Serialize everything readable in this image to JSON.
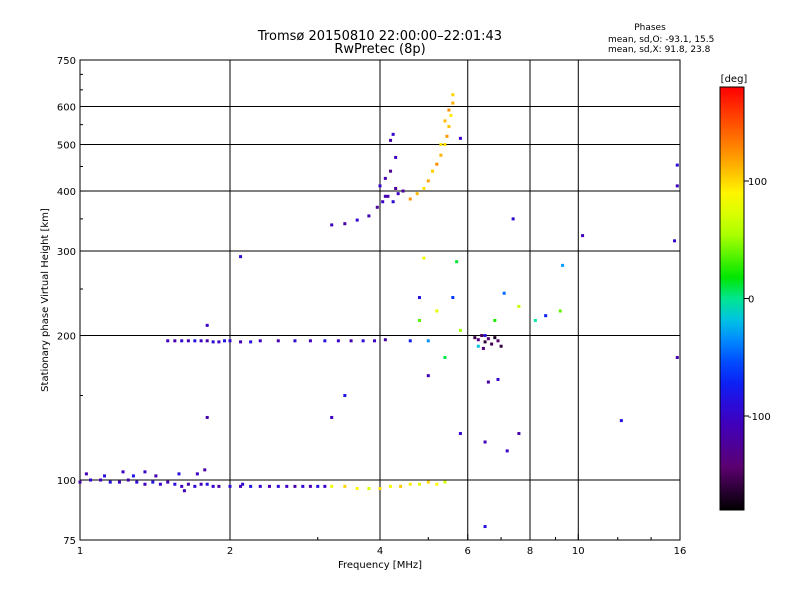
{
  "chart_data": {
    "type": "scatter",
    "title_line1": "Tromsø 20150810 22:00:00–22:01:43",
    "title_line2": "RwPretec (8p)",
    "phases": {
      "heading": "Phases",
      "line_o": "mean, sd,O: -93.1, 15.5",
      "line_x": "mean, sd,X:  91.8, 23.8"
    },
    "xlabel": "Frequency [MHz]",
    "ylabel": "Stationary phase Virtual Height [km]",
    "x_scale": "log",
    "y_scale": "log",
    "xlim": [
      1,
      16
    ],
    "ylim": [
      75,
      750
    ],
    "x_ticks": [
      1,
      2,
      4,
      6,
      8,
      10,
      16
    ],
    "x_tick_labels": [
      "1",
      "2",
      "4",
      "6",
      "8",
      "10",
      "16"
    ],
    "x_gridlines": [
      2,
      4,
      6,
      8,
      10
    ],
    "y_ticks": [
      75,
      100,
      200,
      300,
      400,
      500,
      600,
      750
    ],
    "y_tick_labels": [
      "75",
      "100",
      "200",
      "300",
      "400",
      "500",
      "600",
      "750"
    ],
    "y_gridlines": [
      100,
      200,
      300,
      400,
      500,
      600
    ],
    "grid": true,
    "colorbar": {
      "label": "[deg]",
      "range": [
        -180,
        180
      ],
      "ticks": [
        100,
        0,
        -100
      ],
      "tick_labels": [
        "100",
        "0",
        "-100"
      ],
      "position": "right"
    },
    "clusters": [
      {
        "description": "O-mode E layer trace",
        "color_value": -100,
        "points": [
          [
            1.0,
            99
          ],
          [
            1.05,
            100
          ],
          [
            1.1,
            100
          ],
          [
            1.15,
            99
          ],
          [
            1.2,
            99
          ],
          [
            1.25,
            100
          ],
          [
            1.3,
            99
          ],
          [
            1.35,
            98
          ],
          [
            1.4,
            99
          ],
          [
            1.45,
            98
          ],
          [
            1.5,
            99
          ],
          [
            1.55,
            98
          ],
          [
            1.6,
            97
          ],
          [
            1.65,
            98
          ],
          [
            1.7,
            97
          ],
          [
            1.75,
            98
          ],
          [
            1.8,
            98
          ],
          [
            1.85,
            97
          ],
          [
            1.9,
            97
          ],
          [
            2.0,
            97
          ],
          [
            2.1,
            97
          ],
          [
            2.2,
            97
          ],
          [
            2.3,
            97
          ],
          [
            2.4,
            97
          ],
          [
            2.5,
            97
          ],
          [
            2.6,
            97
          ],
          [
            2.7,
            97
          ],
          [
            2.8,
            97
          ],
          [
            2.9,
            97
          ],
          [
            3.0,
            97
          ],
          [
            3.1,
            97
          ],
          [
            1.03,
            103
          ],
          [
            1.12,
            102
          ],
          [
            1.22,
            104
          ],
          [
            1.28,
            102
          ],
          [
            1.35,
            104
          ],
          [
            1.42,
            102
          ],
          [
            1.58,
            103
          ],
          [
            1.72,
            103
          ],
          [
            1.78,
            105
          ],
          [
            2.12,
            98
          ],
          [
            1.62,
            95
          ]
        ]
      },
      {
        "description": "E layer trace high frequency end",
        "color_value": 90,
        "points": [
          [
            3.2,
            97
          ],
          [
            3.4,
            97
          ],
          [
            3.6,
            96
          ],
          [
            3.8,
            96
          ],
          [
            4.0,
            96
          ],
          [
            4.2,
            97
          ],
          [
            4.4,
            97
          ],
          [
            4.6,
            98
          ],
          [
            4.8,
            98
          ],
          [
            5.0,
            99
          ],
          [
            5.2,
            98
          ],
          [
            5.4,
            99
          ]
        ]
      },
      {
        "description": "Es / F1 trace near 195 km",
        "color_value": -100,
        "points": [
          [
            1.5,
            195
          ],
          [
            1.55,
            195
          ],
          [
            1.6,
            195
          ],
          [
            1.65,
            195
          ],
          [
            1.7,
            195
          ],
          [
            1.75,
            195
          ],
          [
            1.8,
            195
          ],
          [
            1.85,
            194
          ],
          [
            1.9,
            194
          ],
          [
            1.95,
            195
          ],
          [
            2.0,
            195
          ],
          [
            2.1,
            194
          ],
          [
            2.2,
            194
          ],
          [
            2.3,
            195
          ],
          [
            2.5,
            195
          ],
          [
            2.7,
            195
          ],
          [
            2.9,
            195
          ],
          [
            3.1,
            195
          ],
          [
            3.3,
            195
          ],
          [
            3.5,
            195
          ],
          [
            3.7,
            195
          ],
          [
            3.9,
            195
          ],
          [
            4.1,
            196
          ]
        ]
      },
      {
        "description": "F region O trace",
        "color_value": -110,
        "points": [
          [
            3.2,
            340
          ],
          [
            3.4,
            342
          ],
          [
            3.6,
            348
          ],
          [
            3.8,
            355
          ],
          [
            3.95,
            370
          ],
          [
            4.05,
            380
          ],
          [
            4.15,
            390
          ],
          [
            4.25,
            380
          ],
          [
            4.35,
            395
          ],
          [
            4.45,
            400
          ],
          [
            4.0,
            410
          ],
          [
            4.1,
            425
          ],
          [
            4.2,
            440
          ],
          [
            4.3,
            470
          ],
          [
            4.2,
            510
          ],
          [
            4.25,
            525
          ],
          [
            4.1,
            390
          ],
          [
            4.3,
            405
          ]
        ]
      },
      {
        "description": "F region X trace",
        "color_value": 110,
        "points": [
          [
            4.6,
            385
          ],
          [
            4.75,
            395
          ],
          [
            4.9,
            405
          ],
          [
            5.0,
            420
          ],
          [
            5.1,
            440
          ],
          [
            5.2,
            455
          ],
          [
            5.3,
            475
          ],
          [
            5.4,
            500
          ],
          [
            5.45,
            520
          ],
          [
            5.5,
            545
          ],
          [
            5.55,
            575
          ],
          [
            5.6,
            610
          ],
          [
            5.6,
            635
          ],
          [
            5.5,
            590
          ],
          [
            5.4,
            560
          ],
          [
            5.3,
            500
          ]
        ]
      },
      {
        "description": "scattered echoes 200-280 km",
        "color_value": 0,
        "points": [
          [
            4.6,
            195
          ],
          [
            4.8,
            215
          ],
          [
            5.0,
            195
          ],
          [
            5.2,
            225
          ],
          [
            5.4,
            180
          ],
          [
            5.6,
            240
          ],
          [
            5.8,
            205
          ],
          [
            6.3,
            190
          ],
          [
            6.5,
            200
          ],
          [
            6.8,
            215
          ],
          [
            7.1,
            245
          ],
          [
            7.6,
            230
          ],
          [
            8.2,
            215
          ],
          [
            8.6,
            220
          ],
          [
            9.2,
            225
          ],
          [
            9.3,
            280
          ],
          [
            4.9,
            290
          ],
          [
            5.7,
            285
          ]
        ]
      },
      {
        "description": "deep blue cluster 6-7 MHz",
        "color_value": -150,
        "points": [
          [
            6.2,
            198
          ],
          [
            6.3,
            196
          ],
          [
            6.4,
            200
          ],
          [
            6.5,
            194
          ],
          [
            6.6,
            197
          ],
          [
            6.7,
            192
          ],
          [
            6.8,
            198
          ],
          [
            6.9,
            195
          ],
          [
            7.0,
            190
          ],
          [
            6.45,
            188
          ]
        ]
      },
      {
        "description": "isolated echoes",
        "color_value": -100,
        "points": [
          [
            1.8,
            210
          ],
          [
            1.8,
            135
          ],
          [
            2.1,
            292
          ],
          [
            3.2,
            135
          ],
          [
            3.4,
            150
          ],
          [
            5.8,
            125
          ],
          [
            6.5,
            120
          ],
          [
            6.5,
            80
          ],
          [
            7.2,
            115
          ],
          [
            7.6,
            125
          ],
          [
            7.4,
            350
          ],
          [
            10.2,
            323
          ],
          [
            12.2,
            133
          ],
          [
            15.6,
            315
          ],
          [
            15.8,
            180
          ],
          [
            15.8,
            453
          ],
          [
            15.8,
            410
          ],
          [
            6.6,
            160
          ],
          [
            6.9,
            162
          ],
          [
            5.0,
            165
          ],
          [
            4.8,
            240
          ],
          [
            5.8,
            515
          ]
        ]
      }
    ]
  }
}
